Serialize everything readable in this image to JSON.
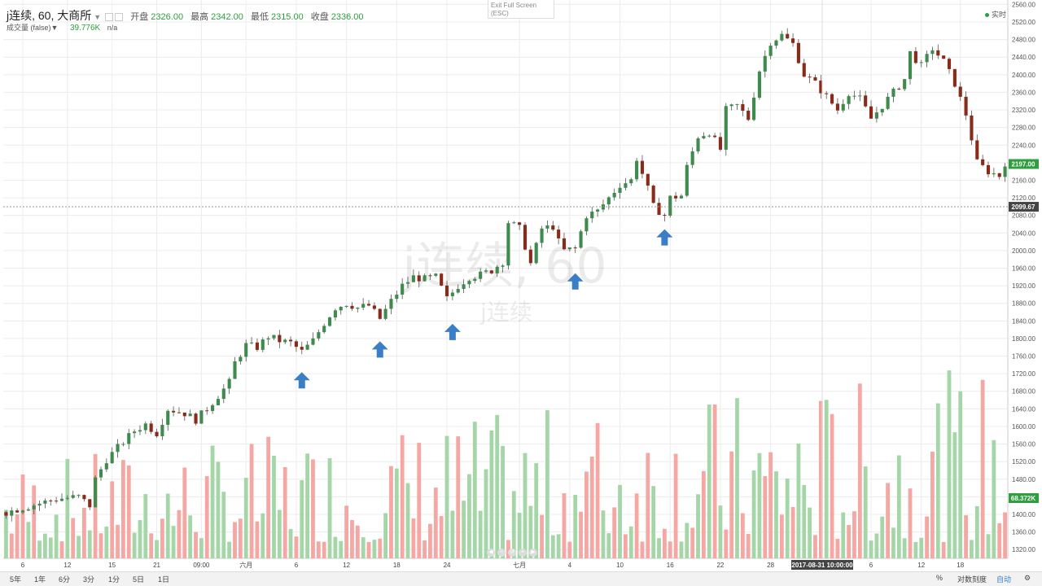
{
  "legend": {
    "symbol": "j连续, 60, 大商所",
    "open_label": "开盘",
    "open": "2326.00",
    "high_label": "最高",
    "high": "2342.00",
    "low_label": "最低",
    "low": "2315.00",
    "close_label": "收盘",
    "close": "2336.00"
  },
  "volume_legend": {
    "label": "成交量 (false)",
    "value": "39.776K",
    "na": "n/a"
  },
  "exit_fullscreen": {
    "line1": "Exit Full Screen",
    "line2": "(ESC)"
  },
  "realtime_label": "实时",
  "bottom_bar": {
    "ranges": [
      "5年",
      "1年",
      "6分",
      "3分",
      "1分",
      "5日",
      "1日"
    ],
    "percent": "%",
    "log": "对数刻度",
    "auto": "自动"
  },
  "chart_data": {
    "type": "candlestick",
    "watermark": "j连续, 60",
    "watermark_sub": "j连续",
    "y_ticks": [
      1320,
      1360,
      1400,
      1440,
      1480,
      1520,
      1560,
      1600,
      1640,
      1680,
      1720,
      1760,
      1800,
      1840,
      1880,
      1920,
      1960,
      2000,
      2040,
      2080,
      2120,
      2160,
      2200,
      2240,
      2280,
      2320,
      2360,
      2400,
      2440,
      2480,
      2520,
      2560
    ],
    "ylim": [
      1300,
      2570
    ],
    "x_labels": [
      {
        "label": "6",
        "idx": 3
      },
      {
        "label": "12",
        "idx": 11
      },
      {
        "label": "15",
        "idx": 19
      },
      {
        "label": "21",
        "idx": 27
      },
      {
        "label": "09:00",
        "idx": 35
      },
      {
        "label": "六月",
        "idx": 43
      },
      {
        "label": "6",
        "idx": 52
      },
      {
        "label": "12",
        "idx": 61
      },
      {
        "label": "18",
        "idx": 70
      },
      {
        "label": "24",
        "idx": 79
      },
      {
        "label": "七月",
        "idx": 92
      },
      {
        "label": "4",
        "idx": 101
      },
      {
        "label": "10",
        "idx": 110
      },
      {
        "label": "16",
        "idx": 119
      },
      {
        "label": "22",
        "idx": 128
      },
      {
        "label": "28",
        "idx": 137
      },
      {
        "label": "6",
        "idx": 155
      },
      {
        "label": "12",
        "idx": 164
      },
      {
        "label": "18",
        "idx": 171
      }
    ],
    "price_path": [
      [
        0,
        1405
      ],
      [
        6,
        1425
      ],
      [
        9,
        1435
      ],
      [
        13,
        1440
      ],
      [
        15,
        1420
      ],
      [
        16,
        1480
      ],
      [
        18,
        1525
      ],
      [
        21,
        1565
      ],
      [
        23,
        1590
      ],
      [
        25,
        1605
      ],
      [
        27,
        1585
      ],
      [
        29,
        1640
      ],
      [
        32,
        1630
      ],
      [
        34,
        1615
      ],
      [
        36,
        1640
      ],
      [
        38,
        1670
      ],
      [
        40,
        1700
      ],
      [
        41,
        1745
      ],
      [
        43,
        1785
      ],
      [
        45,
        1780
      ],
      [
        47,
        1805
      ],
      [
        49,
        1795
      ],
      [
        51,
        1790
      ],
      [
        53,
        1770
      ],
      [
        55,
        1795
      ],
      [
        57,
        1835
      ],
      [
        59,
        1870
      ],
      [
        61,
        1880
      ],
      [
        63,
        1870
      ],
      [
        65,
        1875
      ],
      [
        67,
        1845
      ],
      [
        69,
        1885
      ],
      [
        71,
        1920
      ],
      [
        73,
        1940
      ],
      [
        75,
        1935
      ],
      [
        77,
        1940
      ],
      [
        79,
        1890
      ],
      [
        81,
        1920
      ],
      [
        83,
        1940
      ],
      [
        85,
        1945
      ],
      [
        87,
        1955
      ],
      [
        89,
        1975
      ],
      [
        90,
        2065
      ],
      [
        92,
        2050
      ],
      [
        94,
        1970
      ],
      [
        96,
        2050
      ],
      [
        98,
        2055
      ],
      [
        99,
        2020
      ],
      [
        100,
        2000
      ],
      [
        102,
        2005
      ],
      [
        104,
        2080
      ],
      [
        106,
        2090
      ],
      [
        108,
        2120
      ],
      [
        110,
        2150
      ],
      [
        112,
        2160
      ],
      [
        113,
        2210
      ],
      [
        115,
        2140
      ],
      [
        116,
        2100
      ],
      [
        118,
        2080
      ],
      [
        119,
        2120
      ],
      [
        121,
        2125
      ],
      [
        122,
        2190
      ],
      [
        124,
        2260
      ],
      [
        126,
        2270
      ],
      [
        128,
        2230
      ],
      [
        129,
        2320
      ],
      [
        131,
        2330
      ],
      [
        133,
        2300
      ],
      [
        135,
        2410
      ],
      [
        137,
        2475
      ],
      [
        139,
        2490
      ],
      [
        141,
        2470
      ],
      [
        143,
        2400
      ],
      [
        145,
        2380
      ],
      [
        147,
        2350
      ],
      [
        149,
        2320
      ],
      [
        151,
        2360
      ],
      [
        153,
        2345
      ],
      [
        155,
        2300
      ],
      [
        157,
        2330
      ],
      [
        159,
        2360
      ],
      [
        161,
        2390
      ],
      [
        162,
        2450
      ],
      [
        164,
        2420
      ],
      [
        166,
        2460
      ],
      [
        168,
        2430
      ],
      [
        170,
        2380
      ],
      [
        172,
        2310
      ],
      [
        174,
        2200
      ],
      [
        176,
        2180
      ],
      [
        178,
        2170
      ],
      [
        179,
        2200
      ]
    ],
    "candle_count": 180,
    "last_price_label": "2197.00",
    "crosshair_price": "2099.67",
    "crosshair_time": "2017-08-31 10:00:00",
    "volume_last_label": "68.372K",
    "arrows": [
      {
        "idx": 53,
        "price": 1705
      },
      {
        "idx": 67,
        "price": 1775
      },
      {
        "idx": 80,
        "price": 1815
      },
      {
        "idx": 102,
        "price": 1930
      },
      {
        "idx": 118,
        "price": 2030
      }
    ],
    "colors": {
      "up": "#3e8b4d",
      "down": "#8a2b1a",
      "volume_up": "#a5d6a7",
      "volume_down": "#f4a7a3",
      "grid": "#ececec",
      "arrow": "#3a7ec8",
      "price_badge": "#2e9e3e"
    }
  }
}
